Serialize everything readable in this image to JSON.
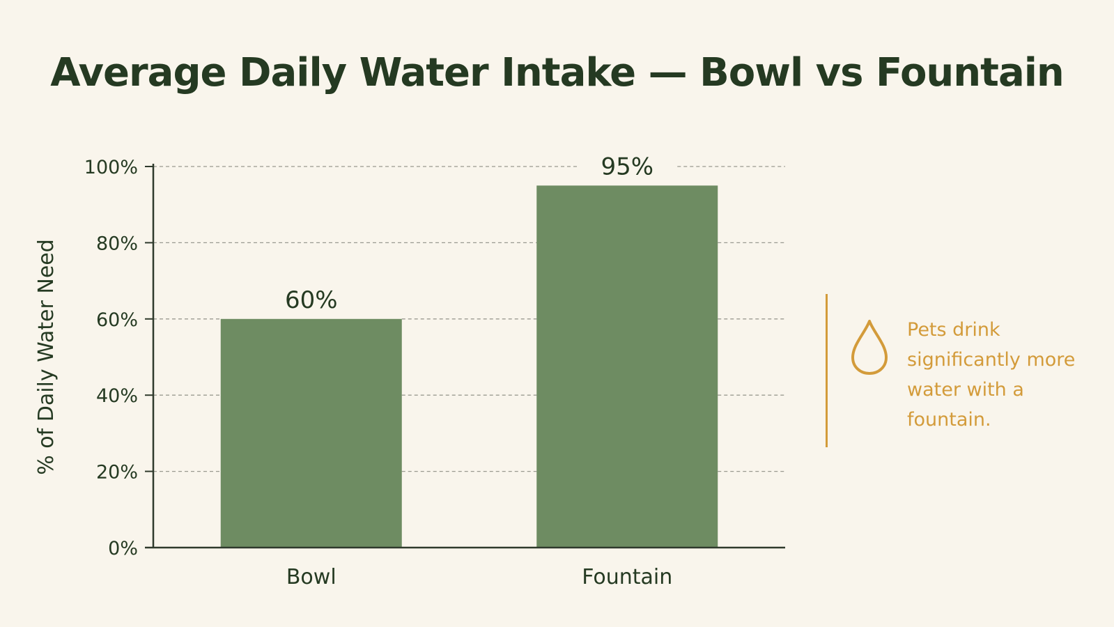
{
  "colors": {
    "background": "#f9f5ec",
    "title": "#253a22",
    "bar": "#6e8c62",
    "axis": "#2f3a2c",
    "grid": "#9a9a90",
    "accent": "#d39b3a"
  },
  "chart_data": {
    "type": "bar",
    "title": "Average Daily Water Intake — Bowl vs Fountain",
    "xlabel": "",
    "ylabel": "% of Daily Water Need",
    "categories": [
      "Bowl",
      "Fountain"
    ],
    "values": [
      60,
      95
    ],
    "data_labels": [
      "60%",
      "95%"
    ],
    "ylim": [
      0,
      100
    ],
    "yticks": [
      0,
      20,
      40,
      60,
      80,
      100
    ],
    "ytick_labels": [
      "0%",
      "20%",
      "40%",
      "60%",
      "80%",
      "100%"
    ],
    "grid": true,
    "grid_style": "dashed",
    "legend": "none"
  },
  "callout": {
    "icon": "water-drop-icon",
    "text": "Pets drink significantly more water with a fountain."
  }
}
